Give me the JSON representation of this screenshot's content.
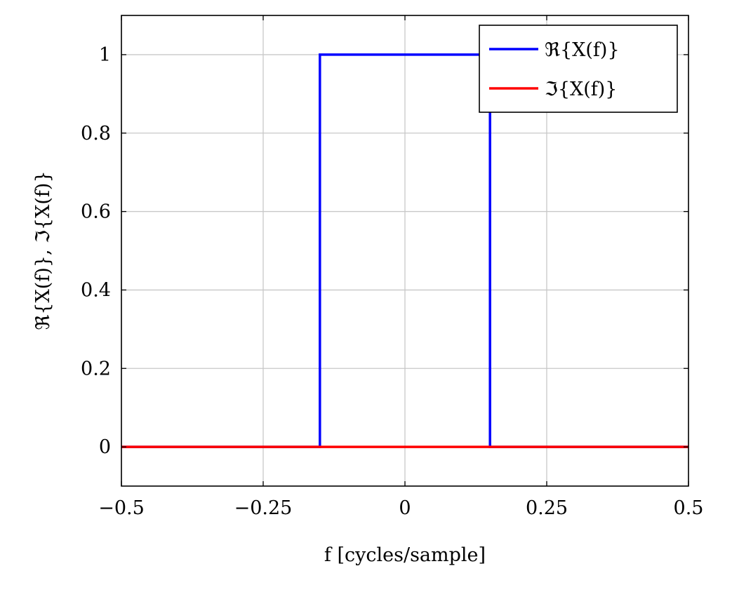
{
  "chart_data": {
    "type": "line",
    "title": "",
    "xlabel": "f  [cycles/sample]",
    "ylabel": "ℜ{X(f)}, ℑ{X(f)}",
    "xlim": [
      -0.5,
      0.5
    ],
    "ylim": [
      -0.1,
      1.1
    ],
    "grid": true,
    "legend_position": "top-right",
    "xticks": [
      -0.5,
      -0.25,
      0,
      0.25,
      0.5
    ],
    "xtick_labels": [
      "−0.5",
      "−0.25",
      "0",
      "0.25",
      "0.5"
    ],
    "yticks": [
      0,
      0.2,
      0.4,
      0.6,
      0.8,
      1
    ],
    "ytick_labels": [
      "0",
      "0.2",
      "0.4",
      "0.6",
      "0.8",
      "1"
    ],
    "series": [
      {
        "name": "ℜ{X(f)}",
        "color": "#0000ff",
        "x": [
          -0.5,
          -0.15,
          -0.15,
          0.15,
          0.15,
          0.5
        ],
        "y": [
          0,
          0,
          1,
          1,
          0,
          0
        ]
      },
      {
        "name": "ℑ{X(f)}",
        "color": "#ff0000",
        "x": [
          -0.5,
          0.5
        ],
        "y": [
          0,
          0
        ]
      }
    ]
  }
}
